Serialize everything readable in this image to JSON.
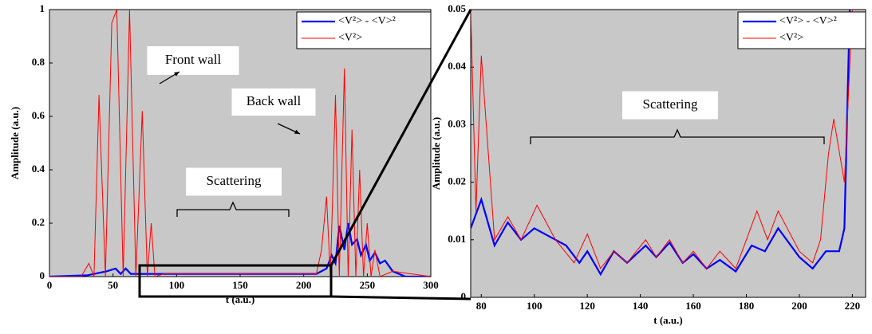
{
  "chart_data": [
    {
      "type": "line",
      "xlabel": "t (a.u.)",
      "ylabel": "Amplitude (a.u.)",
      "xlim": [
        0,
        300
      ],
      "ylim": [
        0,
        1
      ],
      "xticks": [
        0,
        50,
        100,
        150,
        200,
        250,
        300
      ],
      "yticks": [
        0,
        0.2,
        0.4,
        0.6,
        0.8,
        1
      ],
      "annotations": [
        "Front wall",
        "Back wall",
        "Scattering"
      ],
      "series": [
        {
          "name": "<V²> - <V>²",
          "color": "#0000ff",
          "x": [
            0,
            30,
            45,
            52,
            56,
            60,
            64,
            70,
            90,
            150,
            210,
            218,
            222,
            225,
            228,
            232,
            235,
            238,
            242,
            245,
            249,
            252,
            256,
            260,
            264,
            270,
            280,
            300
          ],
          "values": [
            0,
            0.005,
            0.02,
            0.03,
            0.01,
            0.03,
            0.01,
            0.01,
            0.01,
            0.01,
            0.01,
            0.03,
            0.08,
            0.05,
            0.19,
            0.1,
            0.2,
            0.12,
            0.14,
            0.08,
            0.12,
            0.06,
            0.09,
            0.05,
            0.06,
            0.02,
            0,
            0
          ]
        },
        {
          "name": "<V²>",
          "color": "#ff0000",
          "x": [
            0,
            25,
            31,
            35,
            39,
            44,
            49,
            53,
            58,
            63,
            68,
            73,
            77,
            80,
            83,
            90,
            150,
            210,
            214,
            218,
            221,
            225,
            228,
            232,
            235,
            238,
            241,
            244,
            247,
            250,
            253,
            256,
            260,
            270,
            300
          ],
          "values": [
            0,
            0,
            0.05,
            0,
            0.68,
            0,
            0.95,
            1.0,
            0,
            1.0,
            0,
            0.62,
            0,
            0.2,
            0,
            0.01,
            0.01,
            0.01,
            0.1,
            0.3,
            0,
            0.68,
            0,
            0.78,
            0,
            0.55,
            0,
            0.4,
            0,
            0.2,
            0,
            0.1,
            0,
            0.02,
            0
          ]
        }
      ]
    },
    {
      "type": "line",
      "xlabel": "t (a.u.)",
      "ylabel": "Amplitude (a.u.)",
      "xlim": [
        76,
        225
      ],
      "ylim": [
        0,
        0.05
      ],
      "xticks": [
        80,
        100,
        120,
        140,
        160,
        180,
        200,
        220
      ],
      "yticks": [
        0,
        0.01,
        0.02,
        0.03,
        0.04,
        0.05
      ],
      "annotations": [
        "Scattering"
      ],
      "series": [
        {
          "name": "<V²> - <V>²",
          "color": "#0000ff",
          "x": [
            76,
            80,
            85,
            90,
            95,
            100,
            108,
            112,
            117,
            120,
            125,
            130,
            135,
            142,
            146,
            151,
            156,
            160,
            165,
            170,
            176,
            182,
            187,
            192,
            200,
            205,
            210,
            215,
            217,
            219
          ],
          "values": [
            0.012,
            0.017,
            0.009,
            0.013,
            0.01,
            0.012,
            0.01,
            0.009,
            0.006,
            0.008,
            0.004,
            0.008,
            0.006,
            0.009,
            0.007,
            0.0095,
            0.006,
            0.0075,
            0.005,
            0.0065,
            0.0045,
            0.009,
            0.008,
            0.012,
            0.007,
            0.005,
            0.008,
            0.008,
            0.012,
            0.05
          ]
        },
        {
          "name": "<V²>",
          "color": "#ff0000",
          "x": [
            76,
            78,
            80,
            85,
            90,
            95,
            101,
            108,
            115,
            120,
            125,
            130,
            135,
            142,
            146,
            151,
            156,
            160,
            165,
            170,
            176,
            180,
            184,
            188,
            192,
            200,
            205,
            208,
            211,
            213,
            217,
            220
          ],
          "values": [
            0.05,
            0.015,
            0.042,
            0.01,
            0.014,
            0.01,
            0.016,
            0.01,
            0.006,
            0.011,
            0.005,
            0.008,
            0.006,
            0.01,
            0.007,
            0.01,
            0.006,
            0.008,
            0.005,
            0.008,
            0.005,
            0.01,
            0.015,
            0.01,
            0.015,
            0.008,
            0.006,
            0.01,
            0.025,
            0.031,
            0.02,
            0.05
          ]
        }
      ]
    }
  ]
}
